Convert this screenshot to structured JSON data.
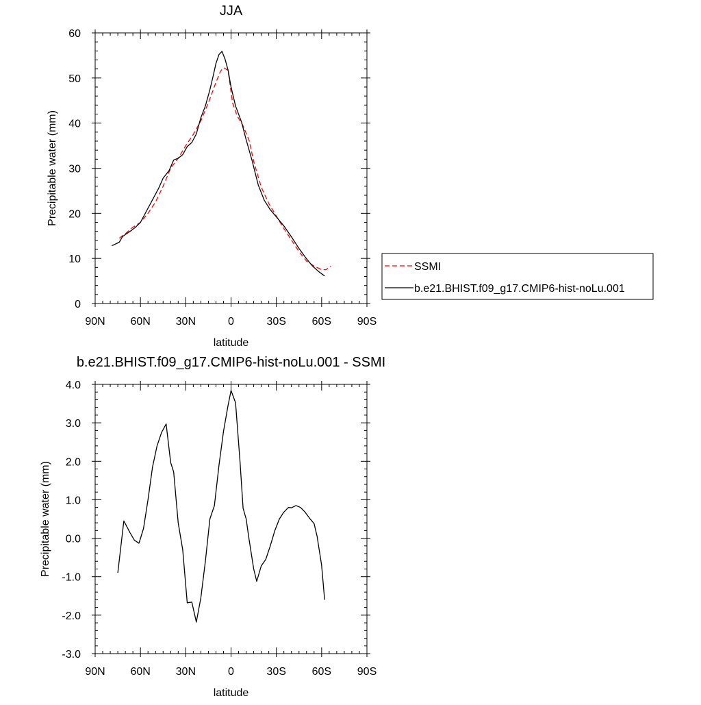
{
  "chart_data": [
    {
      "type": "line",
      "title": "JJA",
      "xlabel": "latitude",
      "ylabel": "Precipitable water (mm)",
      "xlim": [
        90,
        -90
      ],
      "ylim": [
        0,
        60
      ],
      "x_ticks": [
        {
          "value": 90,
          "label": "90N"
        },
        {
          "value": 60,
          "label": "60N"
        },
        {
          "value": 30,
          "label": "30N"
        },
        {
          "value": 0,
          "label": "0"
        },
        {
          "value": -30,
          "label": "30S"
        },
        {
          "value": -60,
          "label": "60S"
        },
        {
          "value": -90,
          "label": "90S"
        }
      ],
      "y_ticks": [
        {
          "value": 0,
          "label": "0"
        },
        {
          "value": 10,
          "label": "10"
        },
        {
          "value": 20,
          "label": "20"
        },
        {
          "value": 30,
          "label": "30"
        },
        {
          "value": 40,
          "label": "40"
        },
        {
          "value": 50,
          "label": "50"
        },
        {
          "value": 60,
          "label": "60"
        }
      ],
      "grid": false,
      "legend_position": "right",
      "series": [
        {
          "name": "SSMI",
          "color": "#ff0000",
          "dash": "dashed",
          "x": [
            74,
            70,
            65,
            60,
            55,
            50,
            45,
            40,
            35,
            30,
            25,
            20,
            15,
            12,
            10,
            7,
            5,
            2,
            -1,
            -4,
            -8,
            -12,
            -15,
            -20,
            -25,
            -30,
            -35,
            -40,
            -45,
            -50,
            -55,
            -60,
            -63,
            -64,
            -66
          ],
          "y": [
            14.5,
            15.5,
            16.9,
            18.0,
            20.0,
            22.5,
            26.0,
            30.0,
            32.2,
            35.0,
            37.5,
            40.5,
            44.5,
            47.2,
            49.0,
            51.5,
            52.3,
            51.7,
            44.5,
            41.6,
            39.4,
            36.1,
            31.5,
            25.8,
            22.2,
            19.4,
            16.6,
            14.1,
            11.5,
            9.4,
            8.3,
            7.5,
            7.5,
            7.8,
            8.3
          ]
        },
        {
          "name": "b.e21.BHIST.f09_g17.CMIP6-hist-noLu.001",
          "color": "#000000",
          "dash": "solid",
          "x": [
            79,
            74,
            72,
            70,
            66,
            63,
            60,
            56,
            52,
            48,
            45,
            41,
            38,
            35,
            32,
            29,
            26,
            23,
            20,
            17,
            14,
            12,
            10,
            8,
            6,
            4,
            2,
            0,
            -3,
            -7,
            -10,
            -14,
            -18,
            -22,
            -26,
            -30,
            -35,
            -40,
            -45,
            -50,
            -54,
            -58,
            -62
          ],
          "y": [
            12.8,
            13.6,
            14.8,
            15.3,
            16.2,
            17.0,
            18.0,
            20.5,
            23.0,
            25.5,
            27.8,
            29.5,
            31.8,
            32.2,
            33.0,
            34.8,
            35.7,
            37.6,
            41.2,
            43.8,
            47.4,
            50.2,
            53.2,
            55.2,
            55.9,
            54.2,
            51.8,
            48.0,
            43.8,
            40.2,
            36.3,
            31.6,
            26.3,
            22.9,
            20.8,
            19.2,
            17.2,
            14.8,
            12.2,
            9.9,
            8.3,
            7.1,
            6.1
          ]
        }
      ]
    },
    {
      "type": "line",
      "title": "b.e21.BHIST.f09_g17.CMIP6-hist-noLu.001 - SSMI",
      "xlabel": "latitude",
      "ylabel": "Precipitable water (mm)",
      "xlim": [
        90,
        -90
      ],
      "ylim": [
        -3.0,
        4.0
      ],
      "x_ticks": [
        {
          "value": 90,
          "label": "90N"
        },
        {
          "value": 60,
          "label": "60N"
        },
        {
          "value": 30,
          "label": "30N"
        },
        {
          "value": 0,
          "label": "0"
        },
        {
          "value": -30,
          "label": "30S"
        },
        {
          "value": -60,
          "label": "60S"
        },
        {
          "value": -90,
          "label": "90S"
        }
      ],
      "y_ticks": [
        {
          "value": -3,
          "label": "-3.0"
        },
        {
          "value": -2,
          "label": "-2.0"
        },
        {
          "value": -1,
          "label": "-1.0"
        },
        {
          "value": 0,
          "label": "0.0"
        },
        {
          "value": 1,
          "label": "1.0"
        },
        {
          "value": 2,
          "label": "2.0"
        },
        {
          "value": 3,
          "label": "3.0"
        },
        {
          "value": 4,
          "label": "4.0"
        }
      ],
      "grid": false,
      "series": [
        {
          "color": "#000000",
          "dash": "solid",
          "x": [
            75,
            71,
            67,
            64,
            61,
            58,
            55,
            52,
            49,
            46,
            43,
            40,
            38,
            35,
            32,
            29,
            26,
            23,
            20,
            17,
            14,
            11,
            8,
            5,
            2,
            0,
            -3,
            -6,
            -8,
            -10,
            -12,
            -15,
            -17,
            -20,
            -23,
            -26,
            -29,
            -32,
            -35,
            -38,
            -40,
            -43,
            -46,
            -49,
            -52,
            -55,
            -57,
            -60,
            -62
          ],
          "y": [
            -0.9,
            0.45,
            0.15,
            -0.05,
            -0.13,
            0.25,
            1.0,
            1.85,
            2.4,
            2.75,
            2.97,
            1.97,
            1.72,
            0.4,
            -0.3,
            -1.68,
            -1.66,
            -2.18,
            -1.55,
            -0.6,
            0.5,
            0.85,
            1.9,
            2.78,
            3.45,
            3.84,
            3.52,
            1.97,
            0.78,
            0.5,
            -0.05,
            -0.8,
            -1.12,
            -0.72,
            -0.55,
            -0.2,
            0.2,
            0.5,
            0.68,
            0.8,
            0.79,
            0.85,
            0.8,
            0.68,
            0.52,
            0.38,
            0.05,
            -0.7,
            -1.6
          ]
        }
      ]
    }
  ]
}
